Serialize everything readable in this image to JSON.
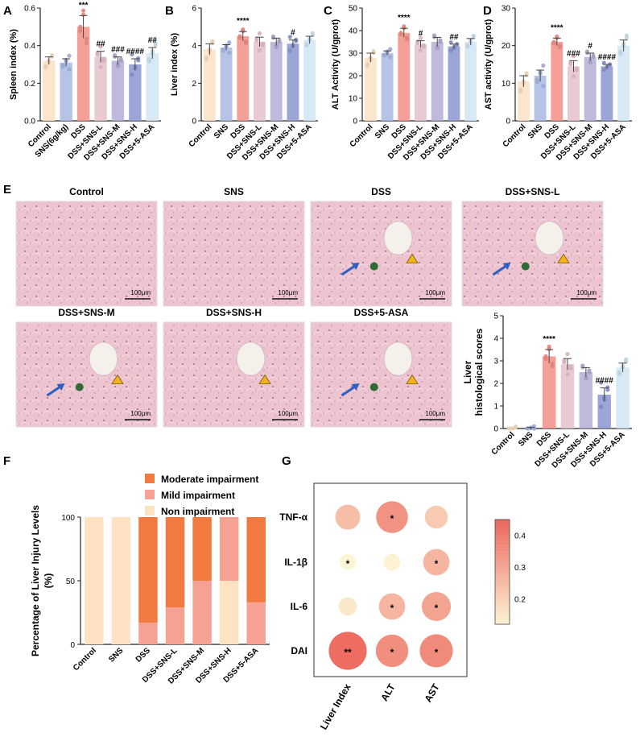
{
  "panel_labels": {
    "A": "A",
    "B": "B",
    "C": "C",
    "D": "D",
    "E": "E",
    "F": "F",
    "G": "G"
  },
  "colors": [
    "#fbe0c4",
    "#a9b8e3",
    "#f28f86",
    "#e5c0ca",
    "#b2aed5",
    "#8a96cf",
    "#cfe5f2"
  ],
  "bar_charts": [
    {
      "id": "A",
      "ylabel": "Spleen index (%)",
      "ylim": [
        0,
        0.6
      ],
      "ticks": [
        "0.0",
        "0.2",
        "0.4",
        "0.6"
      ],
      "categories": [
        "Control",
        "SNS(6g/kg)",
        "DSS",
        "DSS+SNS-L",
        "DSS+SNS-M",
        "DSS+SNS-H",
        "DSS+5-ASA"
      ],
      "values": [
        0.32,
        0.31,
        0.5,
        0.34,
        0.32,
        0.3,
        0.36
      ],
      "errors": [
        0.02,
        0.02,
        0.06,
        0.03,
        0.02,
        0.03,
        0.03
      ],
      "sig": [
        "",
        "",
        "***",
        "##",
        "###",
        "####",
        "##"
      ]
    },
    {
      "id": "B",
      "ylabel": "Liver index (%)",
      "ylim": [
        0,
        6
      ],
      "ticks": [
        "0",
        "2",
        "4",
        "6"
      ],
      "categories": [
        "Control",
        "SNS",
        "DSS",
        "DSS+SNS-L",
        "DSS+SNS-M",
        "DSS+SNS-H",
        "DSS+5-ASA"
      ],
      "values": [
        3.8,
        3.9,
        4.5,
        4.2,
        4.2,
        4.1,
        4.3
      ],
      "errors": [
        0.3,
        0.15,
        0.25,
        0.25,
        0.2,
        0.2,
        0.2
      ],
      "sig": [
        "",
        "",
        "****",
        "",
        "",
        "#",
        ""
      ]
    },
    {
      "id": "C",
      "ylabel": "ALT Activity (U/gprot)",
      "ylim": [
        0,
        50
      ],
      "ticks": [
        "0",
        "10",
        "20",
        "30",
        "40",
        "50"
      ],
      "categories": [
        "Control",
        "SNS",
        "DSS",
        "DSS+SNS-L",
        "DSS+SNS-M",
        "DSS+SNS-H",
        "DSS+5-ASA"
      ],
      "values": [
        28,
        30,
        39,
        34,
        35,
        33,
        35
      ],
      "errors": [
        2,
        1,
        2,
        1.5,
        2,
        1,
        1.5
      ],
      "sig": [
        "",
        "",
        "****",
        "#",
        "",
        "##",
        ""
      ]
    },
    {
      "id": "D",
      "ylabel": "AST activity (U/gprot)",
      "ylim": [
        0,
        30
      ],
      "ticks": [
        "0",
        "10",
        "20",
        "30"
      ],
      "categories": [
        "Control",
        "SNS",
        "DSS",
        "DSS+SNS-L",
        "DSS+SNS-M",
        "DSS+SNS-H",
        "DSS+5-ASA"
      ],
      "values": [
        10.5,
        12,
        21,
        14.5,
        17,
        14.5,
        20
      ],
      "errors": [
        1.5,
        1.5,
        1,
        1.5,
        1,
        0.5,
        1.5
      ],
      "sig": [
        "",
        "",
        "****",
        "###",
        "#",
        "####",
        ""
      ]
    }
  ],
  "histology": {
    "scale": "100μm",
    "panels": [
      {
        "title": "Control",
        "marks": []
      },
      {
        "title": "SNS",
        "marks": []
      },
      {
        "title": "DSS",
        "marks": [
          "arrow",
          "dot",
          "triangle"
        ]
      },
      {
        "title": "DSS+SNS-L",
        "marks": [
          "arrow",
          "dot",
          "triangle"
        ]
      },
      {
        "title": "DSS+SNS-M",
        "marks": [
          "arrow",
          "dot",
          "triangle"
        ]
      },
      {
        "title": "DSS+SNS-H",
        "marks": [
          "triangle"
        ]
      },
      {
        "title": "DSS+5-ASA",
        "marks": [
          "arrow",
          "dot",
          "triangle"
        ]
      }
    ]
  },
  "histo_scores": {
    "ylabel_line1": "Liver",
    "ylabel_line2": "histological scores",
    "ylim": [
      0,
      5
    ],
    "ticks": [
      "0",
      "1",
      "2",
      "3",
      "4",
      "5"
    ],
    "categories": [
      "Control",
      "SNS",
      "DSS",
      "DSS+SNS-L",
      "DSS+SNS-M",
      "DSS+SNS-H",
      "DSS+5-ASA"
    ],
    "values": [
      0,
      0,
      3.2,
      2.85,
      2.5,
      1.5,
      2.7
    ],
    "errors": [
      0,
      0.05,
      0.3,
      0.25,
      0.2,
      0.3,
      0.2
    ],
    "sig": [
      "",
      "",
      "****",
      "",
      "",
      "####",
      ""
    ]
  },
  "chart_data": [
    {
      "type": "bar",
      "title": "",
      "ylabel": "Spleen index (%)",
      "ylim": [
        0,
        0.6
      ],
      "categories": [
        "Control",
        "SNS(6g/kg)",
        "DSS",
        "DSS+SNS-L",
        "DSS+SNS-M",
        "DSS+SNS-H",
        "DSS+5-ASA"
      ],
      "values": [
        0.32,
        0.31,
        0.5,
        0.34,
        0.32,
        0.3,
        0.36
      ]
    },
    {
      "type": "bar",
      "ylabel": "Liver index (%)",
      "ylim": [
        0,
        6
      ],
      "categories": [
        "Control",
        "SNS",
        "DSS",
        "DSS+SNS-L",
        "DSS+SNS-M",
        "DSS+SNS-H",
        "DSS+5-ASA"
      ],
      "values": [
        3.8,
        3.9,
        4.5,
        4.2,
        4.2,
        4.1,
        4.3
      ]
    },
    {
      "type": "bar",
      "ylabel": "ALT Activity (U/gprot)",
      "ylim": [
        0,
        50
      ],
      "categories": [
        "Control",
        "SNS",
        "DSS",
        "DSS+SNS-L",
        "DSS+SNS-M",
        "DSS+SNS-H",
        "DSS+5-ASA"
      ],
      "values": [
        28,
        30,
        39,
        34,
        35,
        33,
        35
      ]
    },
    {
      "type": "bar",
      "ylabel": "AST activity (U/gprot)",
      "ylim": [
        0,
        30
      ],
      "categories": [
        "Control",
        "SNS",
        "DSS",
        "DSS+SNS-L",
        "DSS+SNS-M",
        "DSS+SNS-H",
        "DSS+5-ASA"
      ],
      "values": [
        10.5,
        12,
        21,
        14.5,
        17,
        14.5,
        20
      ]
    },
    {
      "type": "bar",
      "ylabel": "Liver histological scores",
      "ylim": [
        0,
        5
      ],
      "categories": [
        "Control",
        "SNS",
        "DSS",
        "DSS+SNS-L",
        "DSS+SNS-M",
        "DSS+SNS-H",
        "DSS+5-ASA"
      ],
      "values": [
        0,
        0,
        3.2,
        2.85,
        2.5,
        1.5,
        2.7
      ]
    },
    {
      "type": "bar",
      "stacked": true,
      "ylabel": "Percentage of Liver Injury Levels (%)",
      "ylim": [
        0,
        100
      ],
      "categories": [
        "Control",
        "SNS",
        "DSS",
        "DSS+SNS-L",
        "DSS+SNS-M",
        "DSS+SNS-H",
        "DSS+5-ASA"
      ],
      "series": [
        {
          "name": "Non impairment",
          "values": [
            100,
            100,
            0,
            0,
            0,
            50,
            0
          ]
        },
        {
          "name": "Mild impairment",
          "values": [
            0,
            0,
            17,
            29,
            50,
            50,
            33
          ]
        },
        {
          "name": "Moderate impairment",
          "values": [
            0,
            0,
            83,
            71,
            50,
            0,
            67
          ]
        }
      ]
    },
    {
      "type": "heatmap",
      "rows": [
        "TNF-α",
        "IL-1β",
        "IL-6",
        "DAI"
      ],
      "cols": [
        "Liver Index",
        "ALT",
        "AST"
      ],
      "values": [
        [
          0.25,
          0.35,
          0.22
        ],
        [
          0.12,
          0.13,
          0.27
        ],
        [
          0.15,
          0.27,
          0.31
        ],
        [
          0.44,
          0.36,
          0.37
        ]
      ],
      "stars": [
        [
          "",
          "*",
          ""
        ],
        [
          "*",
          "",
          "*"
        ],
        [
          "",
          "*",
          "*"
        ],
        [
          "**",
          "*",
          "*"
        ]
      ],
      "colorbar": {
        "min": 0.12,
        "max": 0.45,
        "ticks": [
          "0.2",
          "0.3",
          "0.4"
        ]
      }
    }
  ],
  "stacked": {
    "ylabel_line1": "Percentage of Liver Injury Levels",
    "ylabel_line2": "(%)",
    "ticks": [
      "0",
      "50",
      "100"
    ],
    "categories": [
      "Control",
      "SNS",
      "DSS",
      "DSS+SNS-L",
      "DSS+SNS-M",
      "DSS+SNS-H",
      "DSS+5-ASA"
    ],
    "legend": [
      "Moderate impairment",
      "Mild impairment",
      "Non impairment"
    ],
    "colors": {
      "Non impairment": "#fde3c4",
      "Mild impairment": "#f5a295",
      "Moderate impairment": "#f07a40"
    }
  },
  "heatmap": {
    "rows": [
      "TNF-α",
      "IL-1β",
      "IL-6",
      "DAI"
    ],
    "cols": [
      "Liver Index",
      "ALT",
      "AST"
    ],
    "colorbar_ticks": [
      "0.4",
      "0.3",
      "0.2"
    ]
  }
}
